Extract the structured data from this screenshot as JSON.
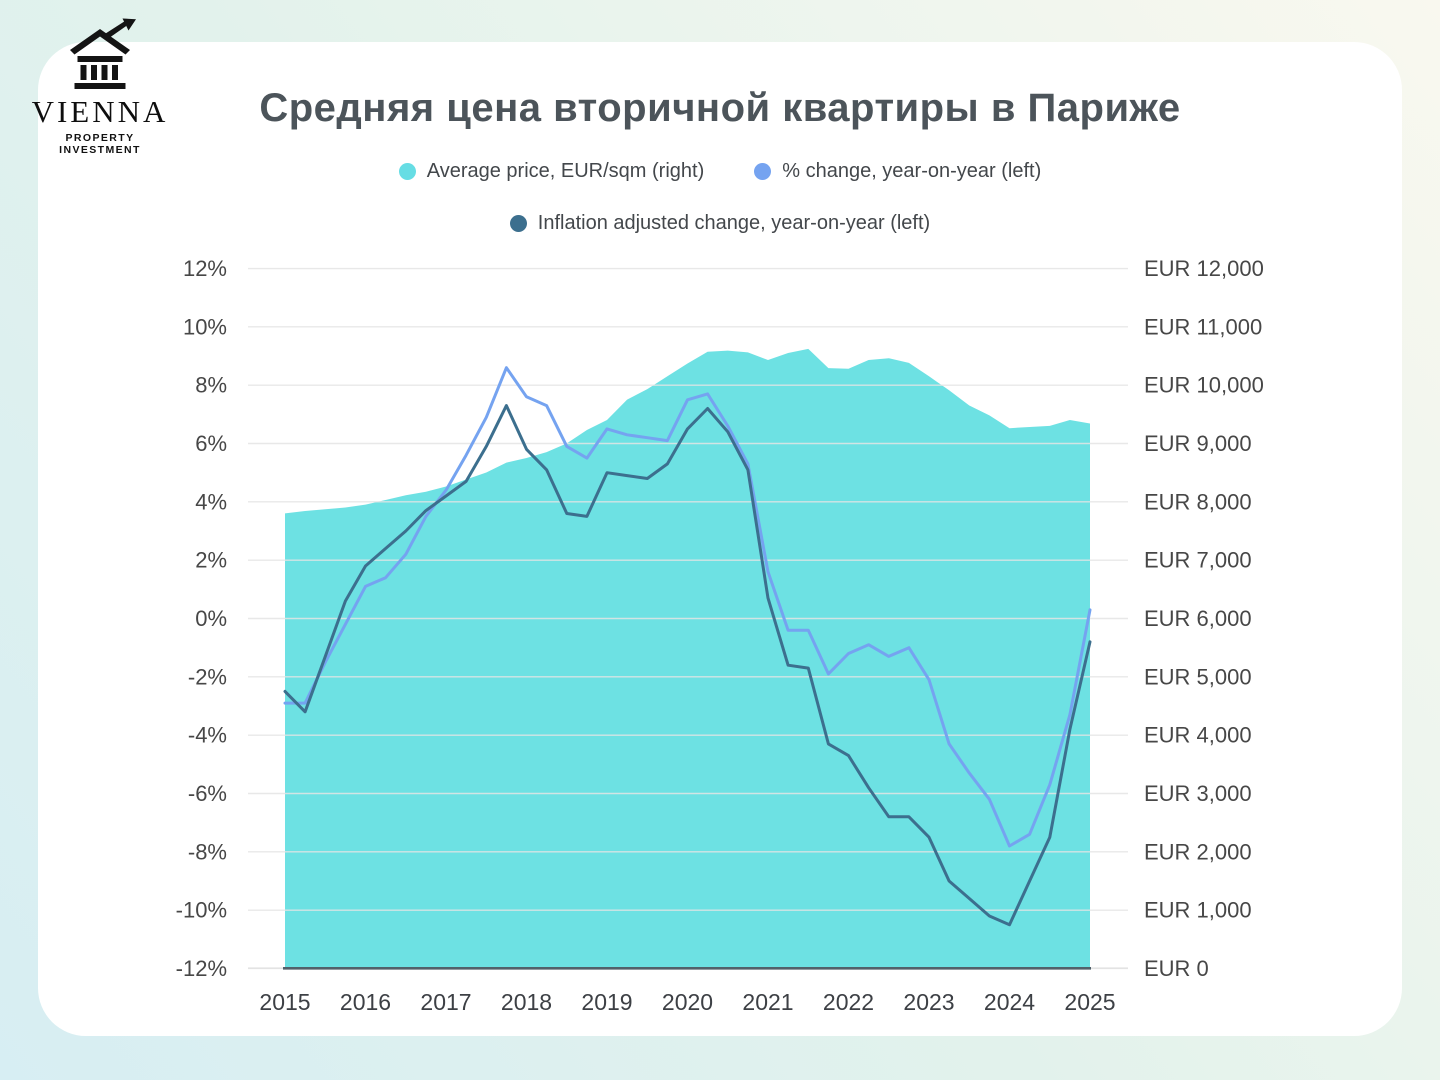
{
  "logo": {
    "name": "VIENNA",
    "subtitle": "PROPERTY INVESTMENT"
  },
  "title": "Средняя цена вторичной квартиры в Париже",
  "legend": [
    {
      "label": "Average price, EUR/sqm (right)",
      "color": "#66dde4"
    },
    {
      "label": "% change, year-on-year (left)",
      "color": "#75a3f0"
    },
    {
      "label": "Inflation adjusted change, year-on-year (left)",
      "color": "#3c6f8e"
    }
  ],
  "chart_data": {
    "type": "area",
    "frequency": "quarterly",
    "x_first": 2015,
    "x_step_years": 0.25,
    "x_axis": {
      "ticks": [
        "2015",
        "2016",
        "2017",
        "2018",
        "2019",
        "2020",
        "2021",
        "2022",
        "2023",
        "2024",
        "2025"
      ]
    },
    "left_axis": {
      "title": "% change, year-on-year",
      "ticks": [
        "12%",
        "10%",
        "8%",
        "6%",
        "4%",
        "2%",
        "0%",
        "-2%",
        "-4%",
        "-6%",
        "-8%",
        "-10%",
        "-12%"
      ],
      "tick_values": [
        12,
        10,
        8,
        6,
        4,
        2,
        0,
        -2,
        -4,
        -6,
        -8,
        -10,
        -12
      ],
      "range": [
        -12,
        12
      ],
      "unit": "%"
    },
    "right_axis": {
      "title": "Average price, EUR/sqm",
      "ticks": [
        "EUR 12,000",
        "EUR 11,000",
        "EUR 10,000",
        "EUR 9,000",
        "EUR 8,000",
        "EUR 7,000",
        "EUR 6,000",
        "EUR 5,000",
        "EUR 4,000",
        "EUR 3,000",
        "EUR 2,000",
        "EUR 1,000",
        "EUR 0"
      ],
      "tick_values": [
        12000,
        11000,
        10000,
        9000,
        8000,
        7000,
        6000,
        5000,
        4000,
        3000,
        2000,
        1000,
        0
      ],
      "range": [
        0,
        12000
      ],
      "unit": "EUR"
    },
    "grid": true,
    "legend_position": "top",
    "series": [
      {
        "name": "Average price, EUR/sqm",
        "axis": "right",
        "type": "area",
        "color": "#65dfe1",
        "values": [
          7800,
          7840,
          7870,
          7900,
          7950,
          8030,
          8110,
          8170,
          8260,
          8380,
          8500,
          8670,
          8750,
          8850,
          9000,
          9230,
          9400,
          9750,
          9930,
          10150,
          10370,
          10570,
          10590,
          10560,
          10430,
          10550,
          10620,
          10290,
          10280,
          10430,
          10460,
          10380,
          10150,
          9910,
          9650,
          9480,
          9260,
          9280,
          9300,
          9400,
          9340
        ]
      },
      {
        "name": "% change, year-on-year",
        "axis": "left",
        "type": "line",
        "color": "#75a3f0",
        "values": [
          -2.9,
          -2.9,
          -1.5,
          -0.2,
          1.1,
          1.4,
          2.2,
          3.5,
          4.4,
          5.6,
          6.9,
          8.6,
          7.6,
          7.3,
          5.9,
          5.5,
          6.5,
          6.3,
          6.2,
          6.1,
          7.5,
          7.7,
          6.6,
          5.3,
          1.6,
          -0.4,
          -0.4,
          -1.9,
          -1.2,
          -0.9,
          -1.3,
          -1.0,
          -2.1,
          -4.3,
          -5.3,
          -6.2,
          -7.8,
          -7.4,
          -5.7,
          -3.3,
          0.3
        ]
      },
      {
        "name": "Inflation adjusted change, year-on-year",
        "axis": "left",
        "type": "line",
        "color": "#3c6f8e",
        "values": [
          -2.5,
          -3.2,
          -1.3,
          0.6,
          1.8,
          2.4,
          3.0,
          3.7,
          4.2,
          4.7,
          5.9,
          7.3,
          5.8,
          5.1,
          3.6,
          3.5,
          5.0,
          4.9,
          4.8,
          5.3,
          6.5,
          7.2,
          6.4,
          5.1,
          0.7,
          -1.6,
          -1.7,
          -4.3,
          -4.7,
          -5.8,
          -6.8,
          -6.8,
          -7.5,
          -9.0,
          -9.6,
          -10.2,
          -10.5,
          -9.0,
          -7.5,
          -3.8,
          -0.8
        ]
      }
    ]
  }
}
